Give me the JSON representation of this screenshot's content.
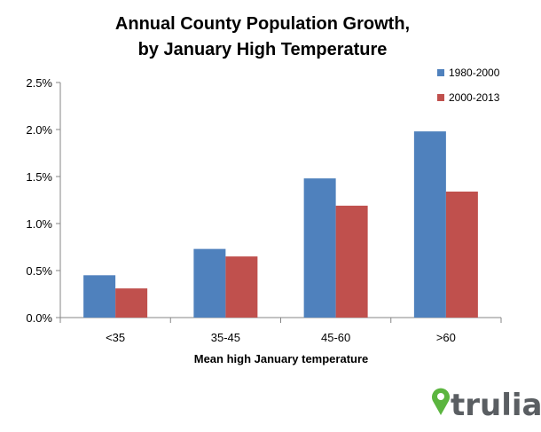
{
  "chart_data": {
    "type": "bar",
    "title_lines": [
      "Annual County Population Growth,",
      "by January High Temperature"
    ],
    "xlabel": "Mean high January temperature",
    "ylabel": "",
    "categories": [
      "<35",
      "35-45",
      "45-60",
      ">60"
    ],
    "series": [
      {
        "name": "1980-2000",
        "color": "#4F81BD",
        "values": [
          0.45,
          0.73,
          1.48,
          1.98
        ]
      },
      {
        "name": "2000-2013",
        "color": "#C0504D",
        "values": [
          0.31,
          0.65,
          1.19,
          1.34
        ]
      }
    ],
    "ylim": [
      0,
      2.5
    ],
    "yticks": [
      0,
      0.5,
      1.0,
      1.5,
      2.0,
      2.5
    ],
    "ytick_labels": [
      "0.0%",
      "0.5%",
      "1.0%",
      "1.5%",
      "2.0%",
      "2.5%"
    ],
    "value_unit": "%",
    "grid": false,
    "legend_position": "top-right"
  },
  "branding": {
    "logo_text": "trulia",
    "logo_icon": "map-pin-icon",
    "logo_color": "#5BB53F",
    "text_color": "#5A5E62"
  }
}
